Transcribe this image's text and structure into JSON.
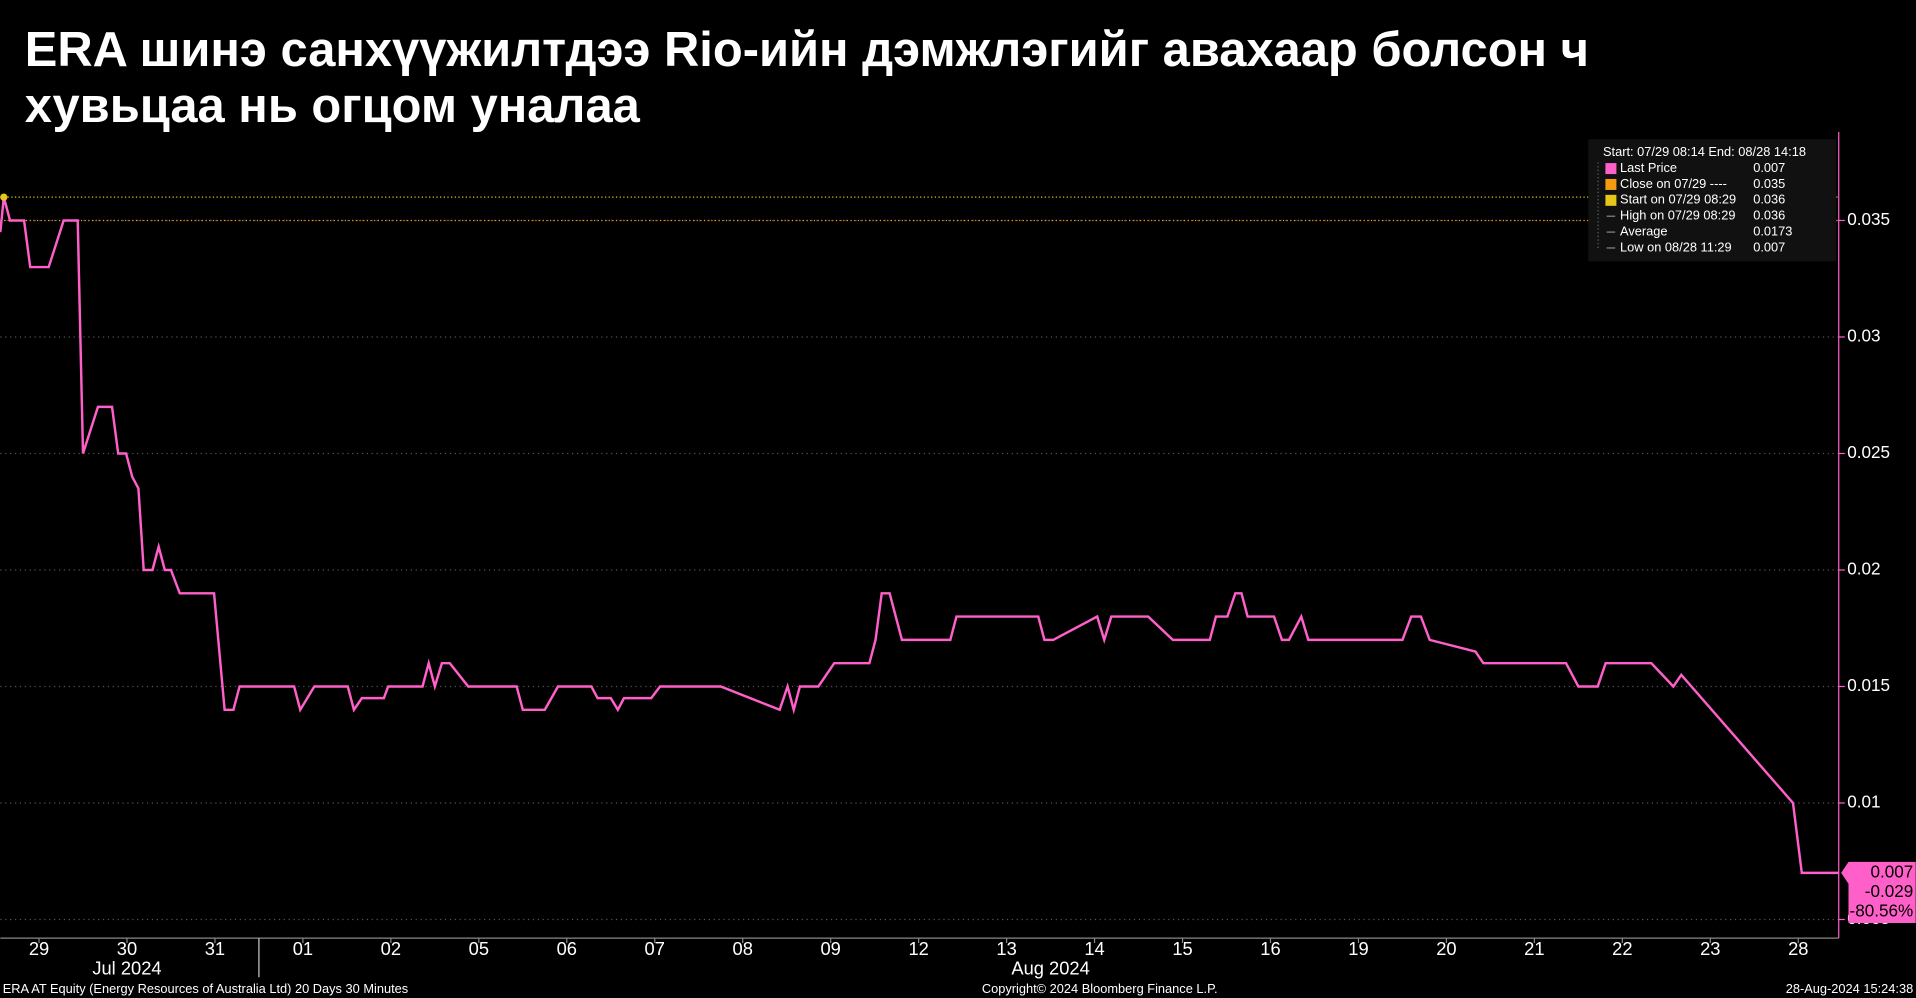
{
  "chart_data": {
    "type": "line",
    "title_lines": [
      "ERA шинэ санхүүжилтдээ Rio-ийн дэмжлэгийг авахаар болсон ч",
      "хувьцаа нь огцом уналаа"
    ],
    "xlim": [
      -0.44,
      20.46
    ],
    "xticks": [
      {
        "value": 0,
        "label": "29"
      },
      {
        "value": 1,
        "label": "30"
      },
      {
        "value": 2,
        "label": "31"
      },
      {
        "value": 3,
        "label": "01"
      },
      {
        "value": 4,
        "label": "02"
      },
      {
        "value": 5,
        "label": "05"
      },
      {
        "value": 6,
        "label": "06"
      },
      {
        "value": 7,
        "label": "07"
      },
      {
        "value": 8,
        "label": "08"
      },
      {
        "value": 9,
        "label": "09"
      },
      {
        "value": 10,
        "label": "12"
      },
      {
        "value": 11,
        "label": "13"
      },
      {
        "value": 12,
        "label": "14"
      },
      {
        "value": 13,
        "label": "15"
      },
      {
        "value": 14,
        "label": "16"
      },
      {
        "value": 15,
        "label": "19"
      },
      {
        "value": 16,
        "label": "20"
      },
      {
        "value": 17,
        "label": "21"
      },
      {
        "value": 18,
        "label": "22"
      },
      {
        "value": 19,
        "label": "23"
      },
      {
        "value": 20,
        "label": "28"
      }
    ],
    "month_labels": [
      {
        "value": 1,
        "label": "Jul 2024"
      },
      {
        "value": 11.5,
        "label": "Aug 2024"
      }
    ],
    "month_separator": 2.5,
    "ylim": [
      0.0042,
      0.0388
    ],
    "yticks": [
      0.005,
      0.01,
      0.015,
      0.02,
      0.025,
      0.03,
      0.035
    ],
    "grid": true,
    "series": [
      {
        "name": "Last Price",
        "color": "#ff5fc8",
        "x": [
          -0.44,
          -0.4,
          -0.33,
          -0.17,
          -0.1,
          0.11,
          0.28,
          0.44,
          0.5,
          0.67,
          0.83,
          0.9,
          0.99,
          1.06,
          1.13,
          1.19,
          1.29,
          1.36,
          1.43,
          1.5,
          1.6,
          1.99,
          2.11,
          2.21,
          2.28,
          2.9,
          2.97,
          3.13,
          3.51,
          3.58,
          3.67,
          3.92,
          3.97,
          4.36,
          4.43,
          4.5,
          4.58,
          4.67,
          4.88,
          5.43,
          5.5,
          5.75,
          5.9,
          6.28,
          6.35,
          6.5,
          6.58,
          6.65,
          6.96,
          7.06,
          7.75,
          8.42,
          8.51,
          8.58,
          8.65,
          8.86,
          9.04,
          9.44,
          9.51,
          9.58,
          9.67,
          9.81,
          10.36,
          10.43,
          11.36,
          11.43,
          11.53,
          12.03,
          12.11,
          12.19,
          12.61,
          12.89,
          13.31,
          13.38,
          13.51,
          13.6,
          13.67,
          13.74,
          14.04,
          14.13,
          14.21,
          14.35,
          14.43,
          15.5,
          15.6,
          15.71,
          15.81,
          16.33,
          16.42,
          17.36,
          17.5,
          17.72,
          17.81,
          18.33,
          18.58,
          18.67,
          19.94,
          20.04,
          20.46
        ],
        "values": [
          0.0345,
          0.036,
          0.035,
          0.035,
          0.033,
          0.033,
          0.035,
          0.035,
          0.025,
          0.027,
          0.027,
          0.025,
          0.025,
          0.024,
          0.0235,
          0.02,
          0.02,
          0.021,
          0.02,
          0.02,
          0.019,
          0.019,
          0.014,
          0.014,
          0.015,
          0.015,
          0.014,
          0.015,
          0.015,
          0.014,
          0.0145,
          0.0145,
          0.015,
          0.015,
          0.016,
          0.015,
          0.016,
          0.016,
          0.015,
          0.015,
          0.014,
          0.014,
          0.015,
          0.015,
          0.0145,
          0.0145,
          0.014,
          0.0145,
          0.0145,
          0.015,
          0.015,
          0.014,
          0.015,
          0.014,
          0.015,
          0.015,
          0.016,
          0.016,
          0.017,
          0.019,
          0.019,
          0.017,
          0.017,
          0.018,
          0.018,
          0.017,
          0.017,
          0.018,
          0.017,
          0.018,
          0.018,
          0.017,
          0.017,
          0.018,
          0.018,
          0.019,
          0.019,
          0.018,
          0.018,
          0.017,
          0.017,
          0.018,
          0.017,
          0.017,
          0.018,
          0.018,
          0.017,
          0.0165,
          0.016,
          0.016,
          0.015,
          0.015,
          0.016,
          0.016,
          0.015,
          0.0155,
          0.01,
          0.007,
          0.007
        ]
      }
    ],
    "legend_box": {
      "header": "Start: 07/29 08:14 End: 08/28 14:18",
      "entries": [
        {
          "name": "Last Price",
          "value": 0.007,
          "color": "#ff5fc8"
        },
        {
          "name": "Close on 07/29 ----",
          "value": 0.035,
          "color": "#f39c12",
          "line": true
        },
        {
          "name": "Start on 07/29 08:29",
          "value": 0.036,
          "color": "#e6c619",
          "line": true
        },
        {
          "name": "High on 07/29 08:29",
          "value": 0.036
        },
        {
          "name": "Average",
          "value": 0.0173
        },
        {
          "name": "Low on 08/28 11:29",
          "value": 0.007
        }
      ]
    },
    "last_labels": {
      "price": 0.007,
      "change": -0.029,
      "change_pct": "-80.56%"
    },
    "footer": {
      "left": "ERA AT Equity (Energy Resources of Australia Ltd) 20 Days 30 Minutes",
      "center": "Copyright© 2024 Bloomberg Finance L.P.",
      "right": "28-Aug-2024 15:24:38"
    }
  }
}
